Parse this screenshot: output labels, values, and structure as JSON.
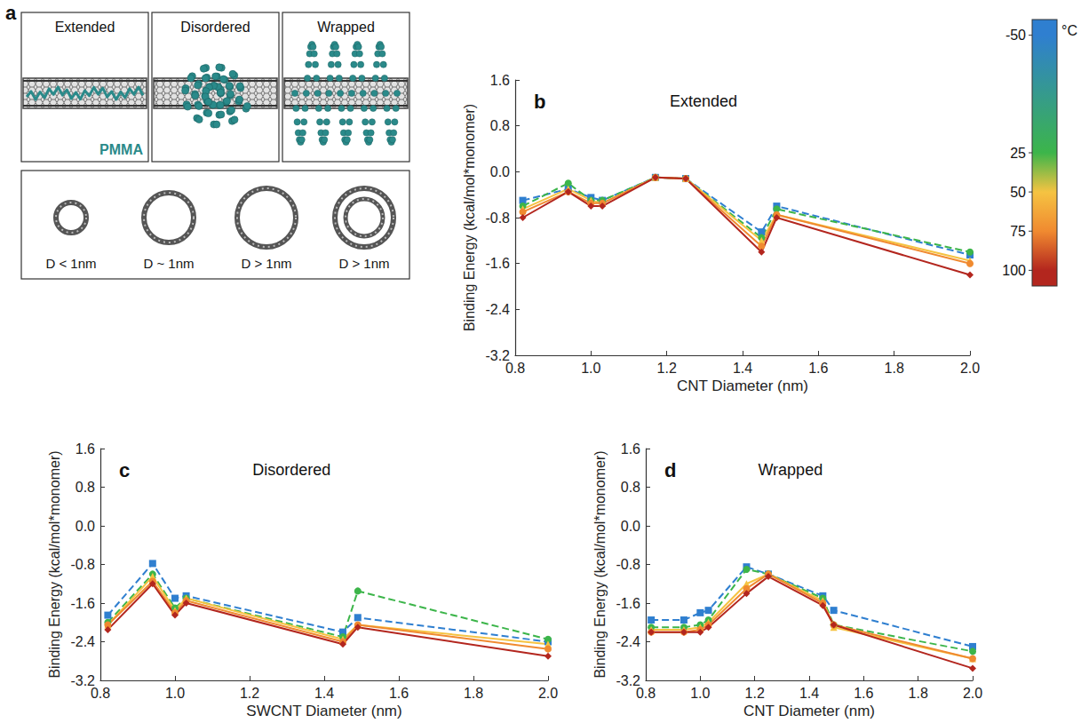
{
  "diagram": {
    "label": "a",
    "panels": [
      "Extended",
      "Disordered",
      "Wrapped"
    ],
    "polymer": "PMMA",
    "cross_sections": [
      "D < 1nm",
      "D ~ 1nm",
      "D > 1nm",
      "D > 1nm"
    ]
  },
  "colorbar": {
    "label": "°C",
    "ylim": [
      -60,
      110
    ],
    "ticks": [
      -50,
      25,
      50,
      75,
      100
    ],
    "colors": [
      "#2f7fd0",
      "#3cb54a",
      "#f5c342",
      "#f08a30",
      "#b3261e"
    ]
  },
  "chart_data": [
    {
      "type": "line",
      "panel_label": "b",
      "title": "Extended",
      "x_label": "CNT Diameter (nm)",
      "y_label": "Binding Energy (kcal/mol*monomer)",
      "x": [
        0.82,
        0.94,
        1.0,
        1.03,
        1.17,
        1.25,
        1.45,
        1.49,
        2.0
      ],
      "xlim": [
        0.8,
        2.0
      ],
      "xticks": [
        0.8,
        {
          "value": 1,
          "label": "1.0"
        },
        1.2,
        1.4,
        1.6,
        1.8,
        {
          "value": 2,
          "label": "2.0"
        }
      ],
      "ylim": [
        -3.2,
        1.6
      ],
      "yticks": [
        -3.2,
        -2.4,
        -1.6,
        -0.8,
        {
          "value": 0,
          "label": "0.0"
        },
        0.8,
        1.6
      ],
      "grid": false,
      "series": [
        {
          "name": "-50",
          "color": "#2f7fd0",
          "line_style": "dashed",
          "marker": "square",
          "values": [
            -0.5,
            -0.3,
            -0.45,
            -0.5,
            -0.1,
            -0.12,
            -1.05,
            -0.6,
            -1.45
          ]
        },
        {
          "name": "25",
          "color": "#3cb54a",
          "line_style": "dashed",
          "marker": "circle",
          "values": [
            -0.6,
            -0.2,
            -0.5,
            -0.5,
            -0.1,
            -0.12,
            -1.15,
            -0.65,
            -1.4
          ]
        },
        {
          "name": "50",
          "color": "#f5c342",
          "line_style": "solid",
          "marker": "triangle",
          "values": [
            -0.65,
            -0.3,
            -0.5,
            -0.55,
            -0.1,
            -0.12,
            -1.2,
            -0.75,
            -1.55
          ]
        },
        {
          "name": "75",
          "color": "#f08a30",
          "line_style": "solid",
          "marker": "circle",
          "values": [
            -0.7,
            -0.35,
            -0.55,
            -0.55,
            -0.1,
            -0.12,
            -1.3,
            -0.75,
            -1.6
          ]
        },
        {
          "name": "100",
          "color": "#b3261e",
          "line_style": "solid",
          "marker": "diamond",
          "values": [
            -0.8,
            -0.35,
            -0.6,
            -0.6,
            -0.1,
            -0.12,
            -1.4,
            -0.8,
            -1.8
          ]
        }
      ]
    },
    {
      "type": "line",
      "panel_label": "c",
      "title": "Disordered",
      "x_label": "SWCNT Diameter (nm)",
      "y_label": "Binding Energy (kcal/mol*monomer)",
      "x": [
        0.82,
        0.94,
        1.0,
        1.03,
        1.45,
        1.49,
        2.0
      ],
      "xlim": [
        0.8,
        2.0
      ],
      "xticks": [
        0.8,
        {
          "value": 1,
          "label": "1.0"
        },
        1.2,
        1.4,
        1.6,
        1.8,
        {
          "value": 2,
          "label": "2.0"
        }
      ],
      "ylim": [
        -3.2,
        1.6
      ],
      "yticks": [
        -3.2,
        -2.4,
        -1.6,
        -0.8,
        {
          "value": 0,
          "label": "0.0"
        },
        0.8,
        1.6
      ],
      "grid": false,
      "series": [
        {
          "name": "-50",
          "color": "#2f7fd0",
          "line_style": "dashed",
          "marker": "square",
          "values": [
            -1.85,
            -0.78,
            -1.5,
            -1.45,
            -2.2,
            -1.9,
            -2.4
          ]
        },
        {
          "name": "25",
          "color": "#3cb54a",
          "line_style": "dashed",
          "marker": "circle",
          "values": [
            -2.0,
            -1.0,
            -1.7,
            -1.5,
            -2.3,
            -1.35,
            -2.35
          ]
        },
        {
          "name": "50",
          "color": "#f5c342",
          "line_style": "solid",
          "marker": "triangle",
          "values": [
            -2.05,
            -1.05,
            -1.75,
            -1.5,
            -2.35,
            -2.05,
            -2.45
          ]
        },
        {
          "name": "75",
          "color": "#f08a30",
          "line_style": "solid",
          "marker": "circle",
          "values": [
            -2.05,
            -1.15,
            -1.8,
            -1.55,
            -2.4,
            -2.05,
            -2.55
          ]
        },
        {
          "name": "100",
          "color": "#b3261e",
          "line_style": "solid",
          "marker": "diamond",
          "values": [
            -2.15,
            -1.2,
            -1.85,
            -1.6,
            -2.45,
            -2.1,
            -2.7
          ]
        }
      ]
    },
    {
      "type": "line",
      "panel_label": "d",
      "title": "Wrapped",
      "x_label": "CNT Diameter (nm)",
      "y_label": "Binding Energy (kcal/mol*monomer)",
      "x": [
        0.82,
        0.94,
        1.0,
        1.03,
        1.17,
        1.25,
        1.45,
        1.49,
        2.0
      ],
      "xlim": [
        0.8,
        2.0
      ],
      "xticks": [
        0.8,
        {
          "value": 1,
          "label": "1.0"
        },
        1.2,
        1.4,
        1.6,
        1.8,
        {
          "value": 2,
          "label": "2.0"
        }
      ],
      "ylim": [
        -3.2,
        1.6
      ],
      "yticks": [
        -3.2,
        -2.4,
        -1.6,
        -0.8,
        {
          "value": 0,
          "label": "0.0"
        },
        0.8,
        1.6
      ],
      "grid": false,
      "series": [
        {
          "name": "-50",
          "color": "#2f7fd0",
          "line_style": "dashed",
          "marker": "square",
          "values": [
            -1.95,
            -1.95,
            -1.8,
            -1.75,
            -0.85,
            -1.0,
            -1.45,
            -1.75,
            -2.5
          ]
        },
        {
          "name": "25",
          "color": "#3cb54a",
          "line_style": "dashed",
          "marker": "circle",
          "values": [
            -2.1,
            -2.1,
            -2.05,
            -1.95,
            -0.9,
            -1.0,
            -1.5,
            -2.05,
            -2.6
          ]
        },
        {
          "name": "50",
          "color": "#f5c342",
          "line_style": "solid",
          "marker": "triangle",
          "values": [
            -2.15,
            -2.15,
            -2.1,
            -2.0,
            -1.2,
            -1.0,
            -1.55,
            -2.1,
            -2.75
          ]
        },
        {
          "name": "75",
          "color": "#f08a30",
          "line_style": "solid",
          "marker": "circle",
          "values": [
            -2.2,
            -2.2,
            -2.15,
            -2.05,
            -1.3,
            -1.0,
            -1.6,
            -2.05,
            -2.75
          ]
        },
        {
          "name": "100",
          "color": "#b3261e",
          "line_style": "solid",
          "marker": "diamond",
          "values": [
            -2.2,
            -2.2,
            -2.2,
            -2.1,
            -1.4,
            -1.05,
            -1.65,
            -2.05,
            -2.95
          ]
        }
      ]
    }
  ]
}
